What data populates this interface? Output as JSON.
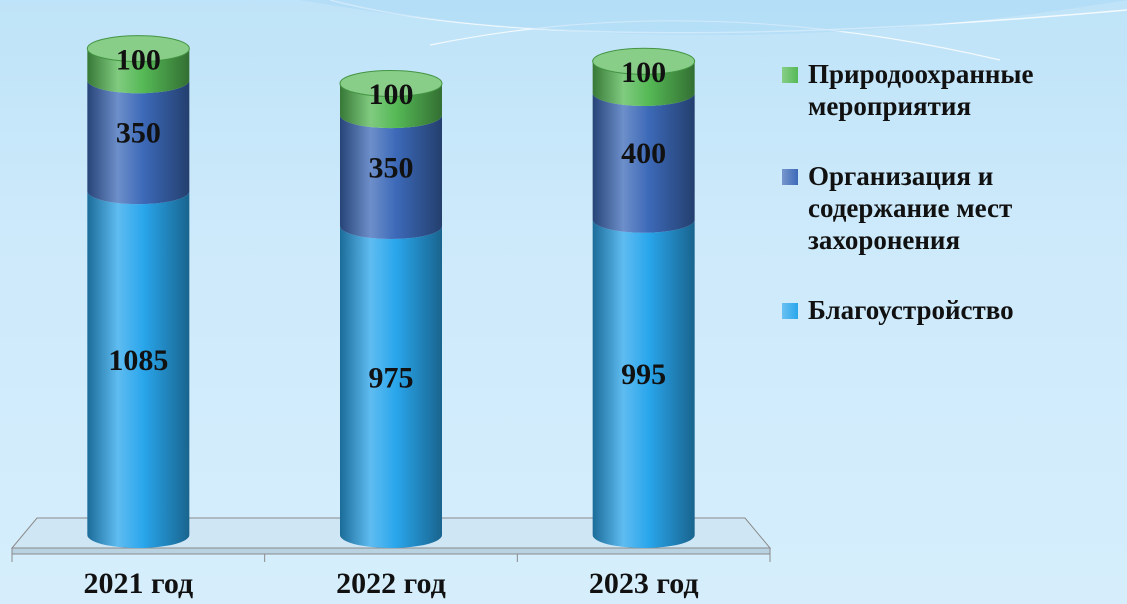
{
  "chart_data": {
    "type": "stacked-cylinder",
    "categories": [
      "2021 год",
      "2022 год",
      "2023 год"
    ],
    "series": [
      {
        "name": "Благоустройство",
        "color": "#29a6ec",
        "values": [
          1085,
          975,
          995
        ]
      },
      {
        "name": "Организация и содержание мест захоронения",
        "color": "#3c69b8",
        "values": [
          350,
          350,
          400
        ]
      },
      {
        "name": "Природоохранные мероприятия",
        "color": "#55b955",
        "values": [
          100,
          100,
          100
        ]
      }
    ],
    "ylim": [
      0,
      1600
    ]
  }
}
